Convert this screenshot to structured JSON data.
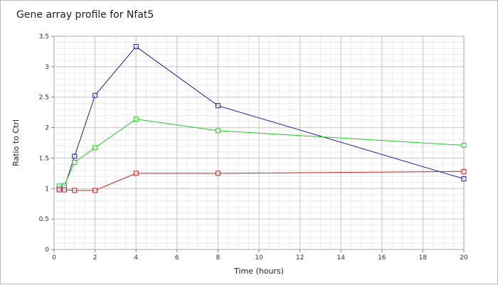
{
  "chart_data": {
    "type": "line",
    "title": "Gene array profile for Nfat5",
    "xlabel": "Time (hours)",
    "ylabel": "Ratio to Ctrl",
    "xlim": [
      0,
      20
    ],
    "ylim": [
      0,
      3.5
    ],
    "x_ticks": [
      "0",
      "2",
      "4",
      "6",
      "8",
      "10",
      "12",
      "14",
      "16",
      "18",
      "20"
    ],
    "y_ticks": [
      "0",
      "0.5",
      "1",
      "1.5",
      "2",
      "2.5",
      "3",
      "3.5"
    ],
    "grid": true,
    "legend": "none",
    "marker": "square",
    "series": [
      {
        "color": "#1a1aa8",
        "x": [
          0.25,
          0.5,
          1,
          2,
          4,
          8,
          20
        ],
        "y": [
          1.0,
          1.02,
          1.53,
          2.53,
          3.33,
          2.36,
          1.16
        ]
      },
      {
        "color": "#22cc22",
        "x": [
          0.25,
          0.5,
          1,
          2,
          4,
          8,
          20
        ],
        "y": [
          1.04,
          1.05,
          1.43,
          1.67,
          2.14,
          1.95,
          1.71
        ]
      },
      {
        "color": "#cc1a1a",
        "x": [
          0.25,
          0.5,
          1,
          2,
          4,
          8,
          20
        ],
        "y": [
          0.98,
          0.98,
          0.97,
          0.97,
          1.25,
          1.25,
          1.28
        ]
      }
    ]
  }
}
